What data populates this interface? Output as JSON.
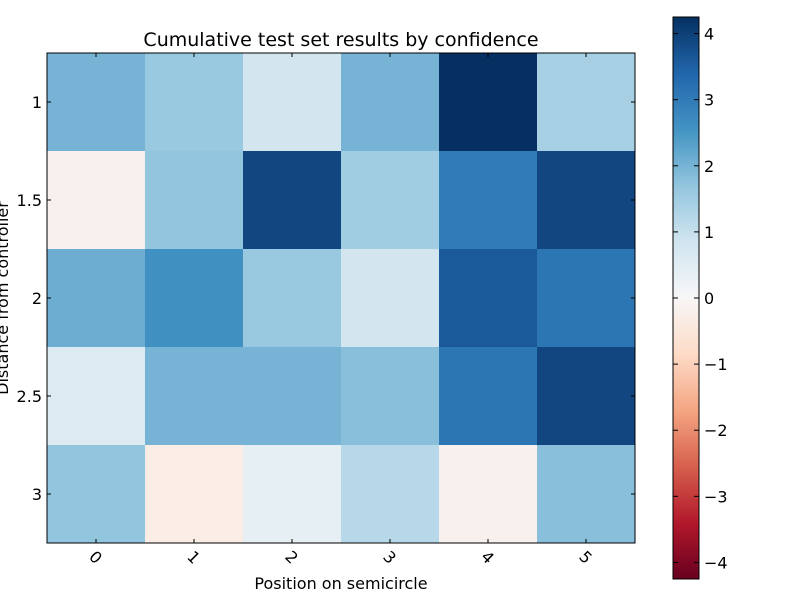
{
  "chart_data": {
    "type": "heatmap",
    "title": "Cumulative test set results by confidence",
    "xlabel": "Position on semicircle",
    "ylabel": "Distance from controller",
    "x_categories": [
      "0",
      "1",
      "2",
      "3",
      "4",
      "5"
    ],
    "y_categories": [
      "1",
      "1.5",
      "2",
      "2.5",
      "3"
    ],
    "values": [
      [
        2.0,
        1.6,
        0.8,
        2.0,
        4.3,
        1.4
      ],
      [
        -0.2,
        1.7,
        3.9,
        1.5,
        3.0,
        3.9
      ],
      [
        2.1,
        2.6,
        1.6,
        0.8,
        3.6,
        3.1
      ],
      [
        0.6,
        2.0,
        2.0,
        1.8,
        3.1,
        3.9
      ],
      [
        1.7,
        -0.3,
        0.4,
        1.2,
        -0.2,
        1.8
      ]
    ],
    "colormap": "RdBu",
    "vmin": -4.25,
    "vmax": 4.25,
    "colorbar_ticks": [
      "4",
      "3",
      "2",
      "1",
      "0",
      "−1",
      "−2",
      "−3",
      "−4"
    ],
    "colorbar_tick_values": [
      4,
      3,
      2,
      1,
      0,
      -1,
      -2,
      -3,
      -4
    ],
    "colors": {
      "rdbu": [
        "#67001f",
        "#b2182b",
        "#d6604d",
        "#f4a582",
        "#fddbc7",
        "#f7f7f7",
        "#d1e5f0",
        "#92c5de",
        "#4393c3",
        "#2166ac",
        "#053061"
      ]
    }
  }
}
